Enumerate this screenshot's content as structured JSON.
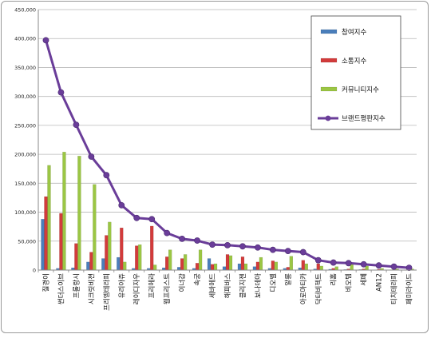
{
  "chart_data": {
    "type": "bar",
    "title": "",
    "xlabel": "",
    "ylabel": "",
    "ylim": [
      0,
      450000
    ],
    "yticks": [
      0,
      50000,
      100000,
      150000,
      200000,
      250000,
      300000,
      350000,
      400000,
      450000
    ],
    "ytick_labels": [
      "0",
      "50,000",
      "100,000",
      "150,000",
      "200,000",
      "250,000",
      "300,000",
      "350,000",
      "400,000",
      "450,000"
    ],
    "grid": true,
    "legend_position": "right",
    "categories": [
      "질경이",
      "썬더스이브",
      "프롤랑시",
      "시크릿비젼",
      "프리엠테라피",
      "유리아쥬",
      "레이디자우",
      "프리메라",
      "웹프리스트",
      "이너감",
      "속궁",
      "세바메드",
      "해피바스",
      "클리지젠",
      "보나데아",
      "디오벨",
      "알롱",
      "아로마티카",
      "닥터비젝트",
      "리홈",
      "비오템",
      "세페",
      "AN12",
      "티치테라피",
      "페미라이드"
    ],
    "series": [
      {
        "name": "참여지수",
        "kind": "bar",
        "color": "#4a7ebb",
        "values": [
          88000,
          3000,
          4000,
          14000,
          20000,
          22000,
          3000,
          3000,
          4000,
          5000,
          3000,
          20000,
          6000,
          11000,
          6000,
          3000,
          3000,
          4000,
          2000,
          1500,
          1000,
          1000,
          500,
          500,
          500
        ]
      },
      {
        "name": "소통지수",
        "kind": "bar",
        "color": "#d23b3b",
        "values": [
          127000,
          98000,
          46000,
          31000,
          60000,
          73000,
          42000,
          76000,
          23000,
          20000,
          12000,
          10000,
          27000,
          23000,
          14000,
          16000,
          5000,
          17000,
          11000,
          3000,
          2000,
          2000,
          1500,
          1000,
          1000
        ]
      },
      {
        "name": "커뮤니티지수",
        "kind": "bar",
        "color": "#9bc644",
        "values": [
          181000,
          204000,
          197000,
          148000,
          83000,
          14000,
          44000,
          9000,
          35000,
          27000,
          35000,
          11000,
          25000,
          11000,
          22000,
          14000,
          24000,
          11000,
          7000,
          6000,
          10000,
          7000,
          3000,
          2000,
          2000
        ]
      },
      {
        "name": "브랜드평판지수",
        "kind": "line",
        "color": "#6a3d99",
        "values": [
          397000,
          307000,
          251000,
          196000,
          164000,
          112000,
          90000,
          88000,
          64000,
          54000,
          51000,
          44000,
          43000,
          41000,
          39000,
          35000,
          33000,
          31000,
          17000,
          13000,
          12000,
          10000,
          8000,
          6000,
          4000
        ]
      }
    ]
  }
}
